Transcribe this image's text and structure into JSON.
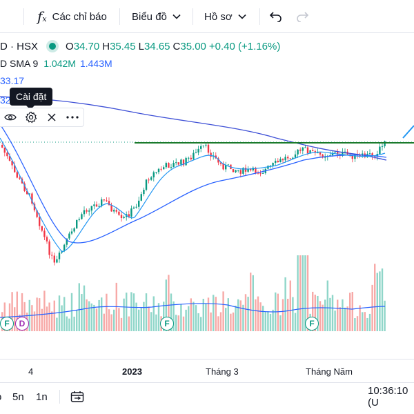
{
  "toolbar": {
    "indicators_label": "Các chỉ báo",
    "chart_label": "Biểu đồ",
    "profile_label": "Hồ sơ",
    "undo_icon": "undo-icon",
    "redo_icon": "redo-icon",
    "fx_icon": "function-icon"
  },
  "legend": {
    "symbol": "D · HSX",
    "open_label": "O",
    "open": "34.70",
    "high_label": "H",
    "high": "35.45",
    "low_label": "L",
    "low": "34.65",
    "close_label": "C",
    "close": "35.00",
    "change": "+0.40 (+1.16%)"
  },
  "indicator": {
    "name": "D SMA 9",
    "volume": "1.042M",
    "volume_ma": "1.443M"
  },
  "ma_values": {
    "first": "33.17",
    "second": "32"
  },
  "tooltip": {
    "text": "Cài đặt"
  },
  "mini_toolbar": {
    "eye_icon": "eye-icon",
    "settings_icon": "gear-icon",
    "remove_icon": "close-icon",
    "more_icon": "more-icon"
  },
  "time_axis": {
    "labels": [
      "4",
      "2023",
      "Tháng 3",
      "Tháng Năm"
    ]
  },
  "events": {
    "items": [
      "F",
      "D",
      "F",
      "F"
    ]
  },
  "bottom_bar": {
    "range_5y": "5n",
    "range_1y": "1n",
    "date_range_icon": "calendar-range-icon",
    "clock": "10:36:10 (U"
  },
  "colors": {
    "up": "#089981",
    "down": "#f23645",
    "ma_blue": "#2962ff",
    "sma_light_blue": "#2196f3",
    "trendline_green": "#1b7a2c",
    "vol_up": "#8fd6c9",
    "vol_down": "#f7a9a7"
  }
}
